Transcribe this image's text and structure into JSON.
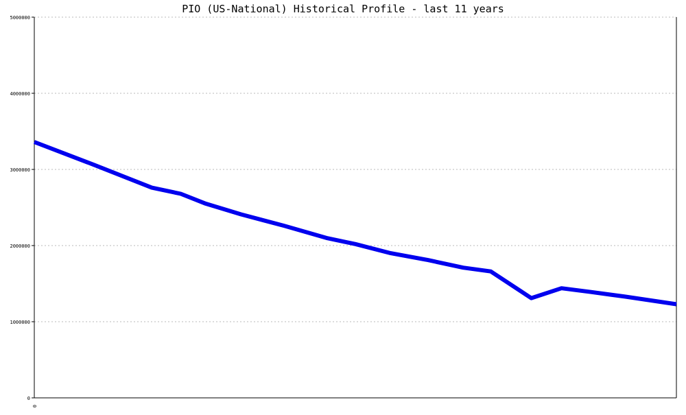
{
  "chart_data": {
    "type": "line",
    "title": "PIO (US-National) Historical Profile - last 11 years",
    "xlabel": "",
    "ylabel": "",
    "ylim": [
      0,
      5000000
    ],
    "yticks": [
      "0",
      "1000000",
      "2000000",
      "3000000",
      "4000000",
      "5000000"
    ],
    "xticks": [
      "0"
    ],
    "grid": true,
    "legend": "none",
    "series": [
      {
        "color": "#0000ee",
        "x": [
          0.0,
          0.093,
          0.183,
          0.228,
          0.267,
          0.322,
          0.389,
          0.455,
          0.5,
          0.555,
          0.613,
          0.668,
          0.711,
          0.774,
          0.821,
          0.867,
          0.92,
          1.0
        ],
        "y": [
          3360000,
          3060000,
          2760000,
          2680000,
          2550000,
          2410000,
          2260000,
          2100000,
          2020000,
          1900000,
          1810000,
          1710000,
          1660000,
          1310000,
          1440000,
          1390000,
          1330000,
          1230000
        ]
      }
    ]
  }
}
